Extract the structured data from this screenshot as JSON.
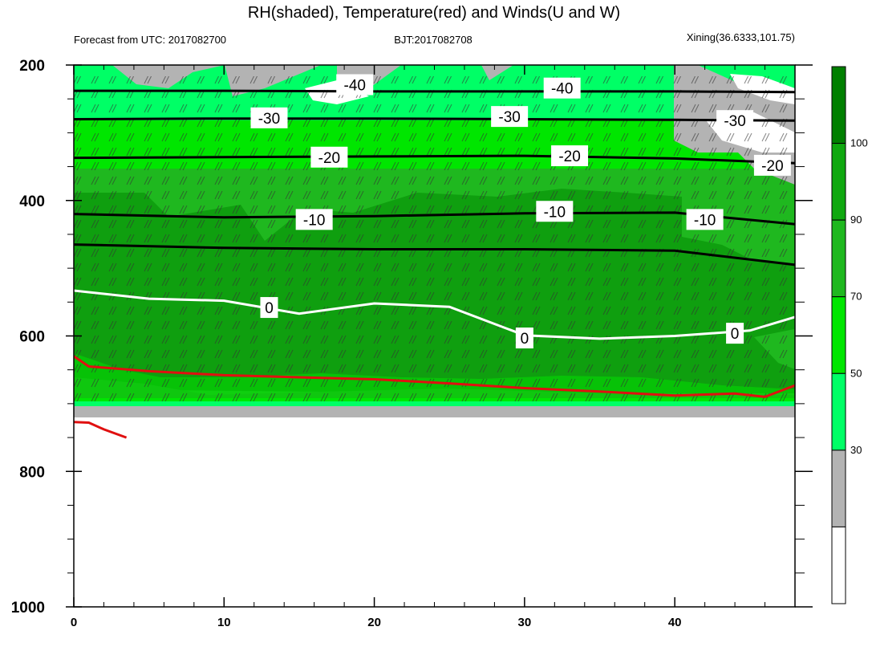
{
  "chart_data": {
    "type": "contour",
    "title": "RH(shaded), Temperature(red) and Winds(U and W)",
    "subtitle_left": "Forecast from UTC: 2017082700",
    "subtitle_center": "BJT:2017082708",
    "subtitle_right": "Xining(36.6333,101.75)",
    "x_range": [
      0,
      48
    ],
    "y_range": [
      200,
      1000
    ],
    "y_inverted": true,
    "x_ticks": [
      "0",
      "10",
      "20",
      "30",
      "40"
    ],
    "y_ticks": [
      "200",
      "400",
      "600",
      "800",
      "1000"
    ],
    "colorbar": {
      "labels": [
        "30",
        "50",
        "70",
        "90",
        "100"
      ],
      "colors": [
        "#ffffff",
        "#b3b3b3",
        "#00ff66",
        "#00e600",
        "#1fb81f",
        "#0fa80f",
        "#007f00"
      ]
    },
    "temperature_contours": [
      {
        "label": "-40",
        "x": [
          0,
          10,
          20,
          30,
          40,
          48
        ],
        "y": [
          238,
          238,
          239,
          239,
          239,
          240
        ]
      },
      {
        "label": "-30",
        "x": [
          0,
          10,
          20,
          30,
          40,
          48
        ],
        "y": [
          280,
          279,
          279,
          280,
          281,
          282
        ]
      },
      {
        "label": "-20",
        "x": [
          0,
          10,
          20,
          30,
          40,
          48
        ],
        "y": [
          337,
          336,
          335,
          334,
          338,
          345
        ]
      },
      {
        "label": "-10",
        "x": [
          0,
          10,
          20,
          30,
          40,
          48
        ],
        "y": [
          420,
          425,
          423,
          419,
          418,
          435
        ]
      },
      {
        "label": "0",
        "x": [
          0,
          5,
          10,
          15,
          20,
          25,
          30,
          35,
          40,
          45,
          48
        ],
        "y": [
          533,
          545,
          548,
          567,
          552,
          557,
          599,
          604,
          600,
          592,
          572
        ]
      },
      {
        "label": "",
        "x": [
          0,
          10,
          20,
          30,
          40,
          48
        ],
        "y": [
          465,
          470,
          472,
          472,
          474,
          495
        ]
      }
    ],
    "red_contours": [
      {
        "label": "",
        "x": [
          0,
          1,
          5,
          10,
          15,
          20,
          25,
          30,
          35,
          40,
          44,
          46,
          48
        ],
        "y": [
          630,
          645,
          652,
          658,
          661,
          664,
          670,
          677,
          682,
          688,
          685,
          690,
          673
        ]
      },
      {
        "label": "",
        "x": [
          0,
          1,
          2,
          3.5
        ],
        "y": [
          727,
          728,
          738,
          750
        ]
      }
    ],
    "contour_labels": [
      {
        "text": "-40",
        "x": 18.7,
        "y": 229
      },
      {
        "text": "-30",
        "x": 13,
        "y": 278
      },
      {
        "text": "-20",
        "x": 17,
        "y": 336
      },
      {
        "text": "-10",
        "x": 16,
        "y": 428
      },
      {
        "text": "0",
        "x": 13,
        "y": 558
      },
      {
        "text": "-40",
        "x": 32.5,
        "y": 234
      },
      {
        "text": "-30",
        "x": 29,
        "y": 276
      },
      {
        "text": "-20",
        "x": 33,
        "y": 334
      },
      {
        "text": "-10",
        "x": 32,
        "y": 416
      },
      {
        "text": "0",
        "x": 30,
        "y": 603
      },
      {
        "text": "-30",
        "x": 44,
        "y": 282
      },
      {
        "text": "-20",
        "x": 46.5,
        "y": 348
      },
      {
        "text": "-10",
        "x": 42,
        "y": 428
      },
      {
        "text": "0",
        "x": 44,
        "y": 596
      }
    ],
    "rh_fill_bands": [
      {
        "level": "below-30",
        "color": "#ffffff"
      },
      {
        "level": "30-50",
        "color": "#b3b3b3"
      },
      {
        "level": "50-70",
        "color": "#00ff66"
      },
      {
        "level": "70-90",
        "color": "#00e600"
      },
      {
        "level": "90-100",
        "color": "#1fb81f"
      },
      {
        "level": "100",
        "color": "#007f00"
      }
    ]
  }
}
